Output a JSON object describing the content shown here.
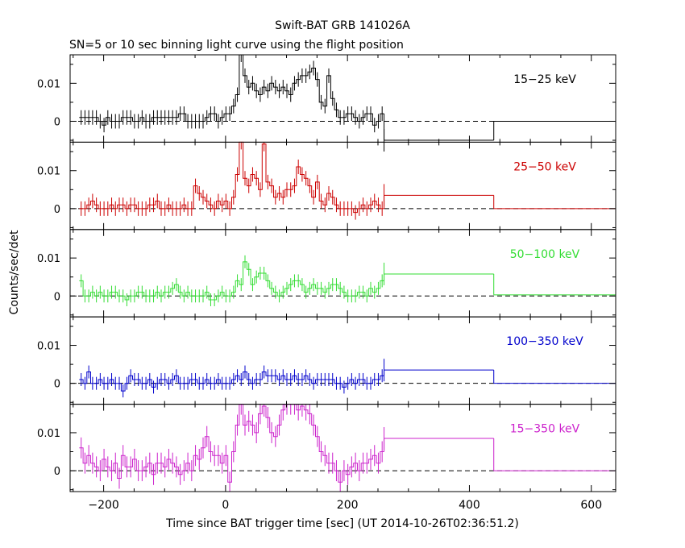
{
  "title": "Swift-BAT GRB 141026A",
  "subtitle": "SN=5 or 10 sec binning light curve using the flight position",
  "ylabel": "Counts/sec/det",
  "xlabel": "Time since BAT trigger time [sec] (UT 2014-10-26T02:36:51.2)",
  "chart_data": {
    "type": "line",
    "x_range": [
      -255,
      640
    ],
    "y_range": [
      -0.0055,
      0.0175
    ],
    "x_ticks": [
      -200,
      0,
      200,
      400,
      600
    ],
    "x_tick_labels": [
      "−200",
      "0",
      "200",
      "400",
      "600"
    ],
    "y_ticks": [
      0,
      0.01
    ],
    "y_tick_labels": [
      "0",
      "0.01"
    ],
    "zero_line": "dashed",
    "panels": [
      {
        "name": "15−25 keV",
        "color": "#000000",
        "fine": [
          0.001,
          0.001,
          0.001,
          0.001,
          0.001,
          0,
          -0.001,
          0.001,
          0,
          0,
          0,
          0.001,
          0.001,
          0.001,
          0,
          0,
          0.001,
          0,
          0,
          0.001,
          0.001,
          0.001,
          0.001,
          0.001,
          0.001,
          0.001,
          0.002,
          0.002,
          0,
          0,
          0,
          0,
          0,
          0.001,
          0.002,
          0.002,
          0,
          0.001,
          0.002,
          0.002,
          0.004,
          0.007,
          0.018,
          0.012,
          0.009,
          0.01,
          0.008,
          0.007,
          0.009,
          0.008,
          0.01,
          0.009,
          0.008,
          0.009,
          0.008,
          0.007,
          0.01,
          0.011,
          0.012,
          0.012,
          0.013,
          0.014,
          0.011,
          0.005,
          0.004,
          0.012,
          0.006,
          0.003,
          0.001,
          0.001,
          0.002,
          0.002,
          0.001,
          0,
          0.001,
          0.002,
          0.002,
          -0.001,
          0,
          0.002
        ],
        "coarse": [
          {
            "x0": 260,
            "x1": 440,
            "y": -0.005
          },
          {
            "x0": 440,
            "x1": 640,
            "y": 0
          }
        ]
      },
      {
        "name": "25−50 keV",
        "color": "#cc0000",
        "fine": [
          0,
          0,
          0.001,
          0.002,
          0.001,
          0,
          0,
          0,
          0.001,
          0,
          0.001,
          0.001,
          0,
          0.001,
          0.001,
          0,
          0,
          0,
          0.001,
          0.001,
          0.002,
          0,
          0,
          0.001,
          0,
          0,
          0,
          0.001,
          0,
          0,
          0.006,
          0.004,
          0.003,
          0.002,
          0.001,
          0,
          0.002,
          0.001,
          0.002,
          0,
          0.003,
          0.009,
          0.018,
          0.008,
          0.006,
          0.009,
          0.008,
          0.005,
          0.017,
          0.007,
          0.006,
          0.003,
          0.004,
          0.003,
          0.005,
          0.005,
          0.006,
          0.011,
          0.009,
          0.008,
          0.006,
          0.003,
          0.007,
          0.002,
          0.001,
          0.004,
          0.003,
          0.001,
          0,
          0,
          0,
          0,
          -0.001,
          0,
          0.001,
          0,
          0.001,
          0.002,
          0.001,
          0
        ],
        "coarse": [
          {
            "x0": 260,
            "x1": 440,
            "y": 0.0035
          },
          {
            "x0": 440,
            "x1": 640,
            "y": 0
          }
        ]
      },
      {
        "name": "50−100 keV",
        "color": "#33dd33",
        "fine": [
          0.004,
          0,
          0,
          0.001,
          0,
          0.001,
          0,
          0,
          0.001,
          0.001,
          0,
          0,
          -0.001,
          0,
          0,
          0.001,
          0.001,
          0,
          0,
          0,
          0.001,
          0,
          0.001,
          0.001,
          0.002,
          0.003,
          0.001,
          0,
          0.001,
          0,
          0,
          0,
          0,
          0.001,
          -0.001,
          -0.001,
          0,
          0.001,
          0,
          0,
          0.001,
          0.004,
          0.003,
          0.009,
          0.007,
          0.003,
          0.005,
          0.006,
          0.006,
          0.004,
          0.002,
          0.001,
          0,
          0.001,
          0.002,
          0.003,
          0.004,
          0.004,
          0.003,
          0.001,
          0.002,
          0.003,
          0.002,
          0.002,
          0.001,
          0.002,
          0.003,
          0.003,
          0.002,
          0.001,
          0,
          0,
          0,
          0.001,
          0.001,
          0,
          0.002,
          0.001,
          0.002,
          0.004
        ],
        "coarse": [
          {
            "x0": 260,
            "x1": 440,
            "y": 0.0058
          },
          {
            "x0": 440,
            "x1": 640,
            "y": 0.0003
          }
        ]
      },
      {
        "name": "100−350 keV",
        "color": "#0000cc",
        "fine": [
          0.001,
          0,
          0.003,
          0,
          0,
          0.001,
          0,
          0,
          0.001,
          0,
          0,
          -0.002,
          0,
          0.002,
          0.001,
          0.001,
          0,
          0,
          0.001,
          -0.001,
          0,
          0.001,
          0.001,
          0,
          0.001,
          0.002,
          0,
          0,
          0,
          0.001,
          0.001,
          0,
          0,
          0.001,
          0,
          0,
          0.001,
          0,
          0,
          0,
          0.001,
          0.002,
          0.001,
          0.003,
          0.001,
          0,
          0.001,
          0.001,
          0.003,
          0.002,
          0.002,
          0.002,
          0.001,
          0.002,
          0.001,
          0.001,
          0.002,
          0.001,
          0.001,
          0.002,
          0.001,
          0,
          0.001,
          0.001,
          0.001,
          0.001,
          0.001,
          0,
          0,
          -0.001,
          0,
          0.001,
          0,
          0.001,
          0.001,
          0,
          0,
          0.001,
          0.001,
          0.002
        ],
        "coarse": [
          {
            "x0": 260,
            "x1": 440,
            "y": 0.0035
          },
          {
            "x0": 440,
            "x1": 640,
            "y": 0
          }
        ]
      },
      {
        "name": "15−350 keV",
        "color": "#cc22cc",
        "fine": [
          0.006,
          0.002,
          0.004,
          0.002,
          0.001,
          0,
          0.003,
          0.001,
          0,
          0.002,
          -0.002,
          0.004,
          0.001,
          0.001,
          0.003,
          0,
          0,
          0.001,
          0.002,
          -0.001,
          0.002,
          0.002,
          0.001,
          0.003,
          0.002,
          0.001,
          -0.001,
          0,
          0.002,
          0,
          0.004,
          0.003,
          0.006,
          0.009,
          0.005,
          0.004,
          0.004,
          0.002,
          0.004,
          -0.003,
          0.005,
          0.012,
          0.018,
          0.012,
          0.013,
          0.012,
          0.01,
          0.015,
          0.017,
          0.014,
          0.01,
          0.009,
          0.012,
          0.016,
          0.018,
          0.018,
          0.018,
          0.016,
          0.017,
          0.016,
          0.015,
          0.012,
          0.009,
          0.005,
          0.004,
          0.002,
          0.002,
          0,
          -0.003,
          0,
          -0.001,
          0.001,
          0.002,
          0,
          0.002,
          0.002,
          0.003,
          0.004,
          0.002,
          0.005
        ],
        "coarse": [
          {
            "x0": 260,
            "x1": 440,
            "y": 0.0085
          },
          {
            "x0": 440,
            "x1": 640,
            "y": 0
          }
        ]
      }
    ]
  }
}
